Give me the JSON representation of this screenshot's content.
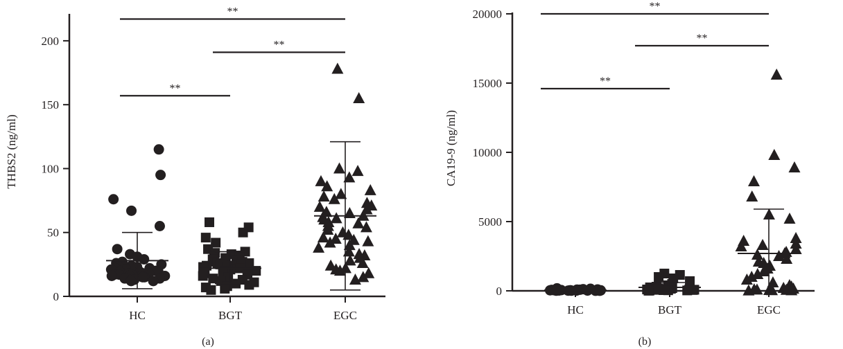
{
  "colors": {
    "ink": "#231f20",
    "background": "#ffffff"
  },
  "panels": [
    {
      "label": "(a)"
    },
    {
      "label": "(b)"
    }
  ],
  "chart_data": [
    {
      "type": "scatter",
      "panel": "(a)",
      "title": "",
      "xlabel": "",
      "ylabel": "THBS2 (ng/ml)",
      "categories": [
        "HC",
        "BGT",
        "EGC"
      ],
      "ylim": [
        0,
        220
      ],
      "yticks": [
        0,
        50,
        100,
        150,
        200
      ],
      "grid": false,
      "legend": "none",
      "series": [
        {
          "category": "HC",
          "marker": "circle",
          "values": [
            115,
            95,
            76,
            67,
            55,
            37,
            33,
            31,
            29,
            27,
            26,
            25,
            24,
            24,
            23,
            23,
            22,
            22,
            21,
            21,
            21,
            20,
            20,
            20,
            19,
            19,
            19,
            18,
            18,
            18,
            17,
            17,
            17,
            16,
            16,
            16,
            15,
            15,
            14,
            14,
            13,
            13,
            12,
            12
          ],
          "mean": 28,
          "sd_upper": 50,
          "sd_lower": 6
        },
        {
          "category": "BGT",
          "marker": "square",
          "values": [
            58,
            54,
            50,
            46,
            42,
            37,
            35,
            34,
            33,
            32,
            31,
            30,
            29,
            28,
            27,
            27,
            26,
            26,
            25,
            25,
            24,
            24,
            23,
            23,
            22,
            22,
            21,
            21,
            20,
            20,
            19,
            18,
            18,
            17,
            16,
            15,
            14,
            13,
            12,
            11,
            10,
            9,
            8,
            7,
            6,
            5
          ],
          "mean": 22,
          "sd_upper": 35,
          "sd_lower": 10
        },
        {
          "category": "EGC",
          "marker": "triangle",
          "values": [
            178,
            155,
            100,
            98,
            93,
            90,
            86,
            83,
            80,
            78,
            76,
            73,
            71,
            70,
            68,
            66,
            65,
            63,
            62,
            61,
            60,
            58,
            57,
            55,
            54,
            52,
            50,
            48,
            46,
            45,
            44,
            43,
            42,
            40,
            38,
            35,
            33,
            32,
            30,
            28,
            26,
            24,
            22,
            21,
            20,
            18,
            15,
            13
          ],
          "mean": 63,
          "sd_upper": 121,
          "sd_lower": 5
        }
      ],
      "significance": [
        {
          "from": "HC",
          "to": "BGT",
          "y": 157,
          "label": "**"
        },
        {
          "from": "BGT",
          "to": "EGC",
          "y": 191,
          "label": "**"
        },
        {
          "from": "HC",
          "to": "EGC",
          "y": 217,
          "label": "**"
        }
      ]
    },
    {
      "type": "scatter",
      "panel": "(b)",
      "title": "",
      "xlabel": "",
      "ylabel": "CA19-9 (ng/ml)",
      "categories": [
        "HC",
        "BGT",
        "EGC"
      ],
      "ylim": [
        0,
        20000
      ],
      "yticks": [
        0,
        5000,
        10000,
        15000,
        20000
      ],
      "grid": false,
      "legend": "none",
      "series": [
        {
          "category": "HC",
          "marker": "circle",
          "values": [
            180,
            150,
            120,
            100,
            90,
            80,
            70,
            60,
            55,
            50,
            45,
            40,
            40,
            35,
            30,
            30,
            25,
            20,
            20,
            15,
            10,
            10,
            5,
            5
          ],
          "mean": 50,
          "sd_upper": 90,
          "sd_lower": 10
        },
        {
          "category": "BGT",
          "marker": "square",
          "values": [
            1250,
            1150,
            1000,
            900,
            700,
            500,
            400,
            300,
            250,
            200,
            180,
            150,
            130,
            110,
            100,
            90,
            80,
            70,
            60,
            50,
            40,
            30,
            20,
            10
          ],
          "mean": 250,
          "sd_upper": 600,
          "sd_lower": 0
        },
        {
          "category": "EGC",
          "marker": "triangle",
          "values": [
            15600,
            9800,
            8900,
            7900,
            6800,
            5500,
            5200,
            3800,
            3600,
            3400,
            3300,
            3200,
            3000,
            2800,
            2700,
            2600,
            2500,
            2300,
            2100,
            2000,
            1800,
            1600,
            1400,
            1200,
            1000,
            800,
            600,
            400,
            300,
            200,
            150,
            100,
            80,
            60,
            50,
            40,
            30,
            20
          ],
          "mean": 2700,
          "sd_upper": 5900,
          "sd_lower": 0
        }
      ],
      "significance": [
        {
          "from": "HC",
          "to": "BGT",
          "y": 14600,
          "label": "**"
        },
        {
          "from": "BGT",
          "to": "EGC",
          "y": 17700,
          "label": "**"
        },
        {
          "from": "HC",
          "to": "EGC",
          "y": 20000,
          "label": "**"
        }
      ]
    }
  ]
}
